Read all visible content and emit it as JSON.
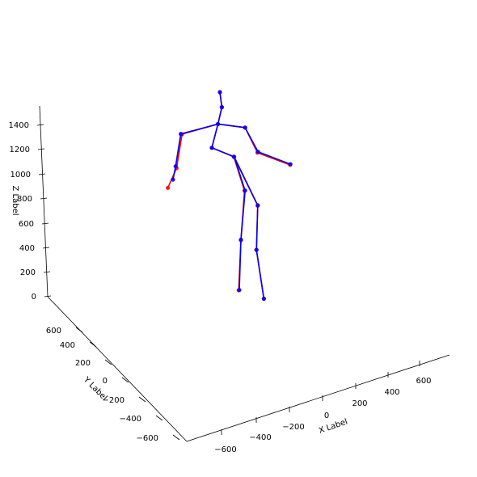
{
  "chart_data": {
    "type": "scatter",
    "subtype": "3d-skeleton",
    "title": "",
    "xlabel": "X Label",
    "ylabel": "Y Label",
    "zlabel": "Z Label",
    "x_ticks": [
      "−600",
      "−400",
      "−200",
      "0",
      "200",
      "400",
      "600"
    ],
    "y_ticks": [
      "600",
      "400",
      "200",
      "0",
      "−200",
      "−400",
      "−600"
    ],
    "z_ticks": [
      "0",
      "200",
      "400",
      "600",
      "800",
      "1000",
      "1200",
      "1400"
    ],
    "grid": false,
    "colors": {
      "series_a": "#ff0000",
      "series_b": "#0000ff"
    },
    "bones": [
      [
        0,
        1
      ],
      [
        1,
        2
      ],
      [
        2,
        3
      ],
      [
        0,
        4
      ],
      [
        4,
        5
      ],
      [
        5,
        6
      ],
      [
        0,
        7
      ],
      [
        7,
        8
      ],
      [
        8,
        9
      ],
      [
        9,
        10
      ],
      [
        8,
        11
      ],
      [
        11,
        12
      ],
      [
        12,
        13
      ],
      [
        8,
        14
      ],
      [
        14,
        15
      ],
      [
        15,
        16
      ]
    ],
    "series": [
      {
        "color": "#ff0000",
        "joints": [
          [
            248,
            1373
          ],
          [
            281,
            1040
          ],
          [
            270,
            555
          ],
          [
            263,
            63
          ],
          [
            322,
            895
          ],
          [
            318,
            460
          ],
          [
            341,
            -20
          ],
          [
            180,
            1462
          ],
          [
            199,
            1695
          ],
          [
            211,
            1860
          ],
          [
            205,
            2008
          ],
          [
            88,
            1595
          ],
          [
            71,
            1262
          ],
          [
            44,
            1068
          ],
          [
            283,
            1660
          ],
          [
            321,
            1414
          ],
          [
            422,
            1294
          ]
        ]
      },
      {
        "color": "#0000ff",
        "joints": [
          [
            249,
            1374
          ],
          [
            283,
            1042
          ],
          [
            270,
            560
          ],
          [
            265,
            66
          ],
          [
            322,
            897
          ],
          [
            318,
            460
          ],
          [
            341,
            -20
          ],
          [
            180,
            1462
          ],
          [
            199,
            1695
          ],
          [
            211,
            1860
          ],
          [
            205,
            2008
          ],
          [
            84,
            1598
          ],
          [
            68,
            1280
          ],
          [
            60,
            1150
          ],
          [
            283,
            1660
          ],
          [
            323,
            1423
          ],
          [
            423,
            1301
          ]
        ]
      }
    ]
  }
}
